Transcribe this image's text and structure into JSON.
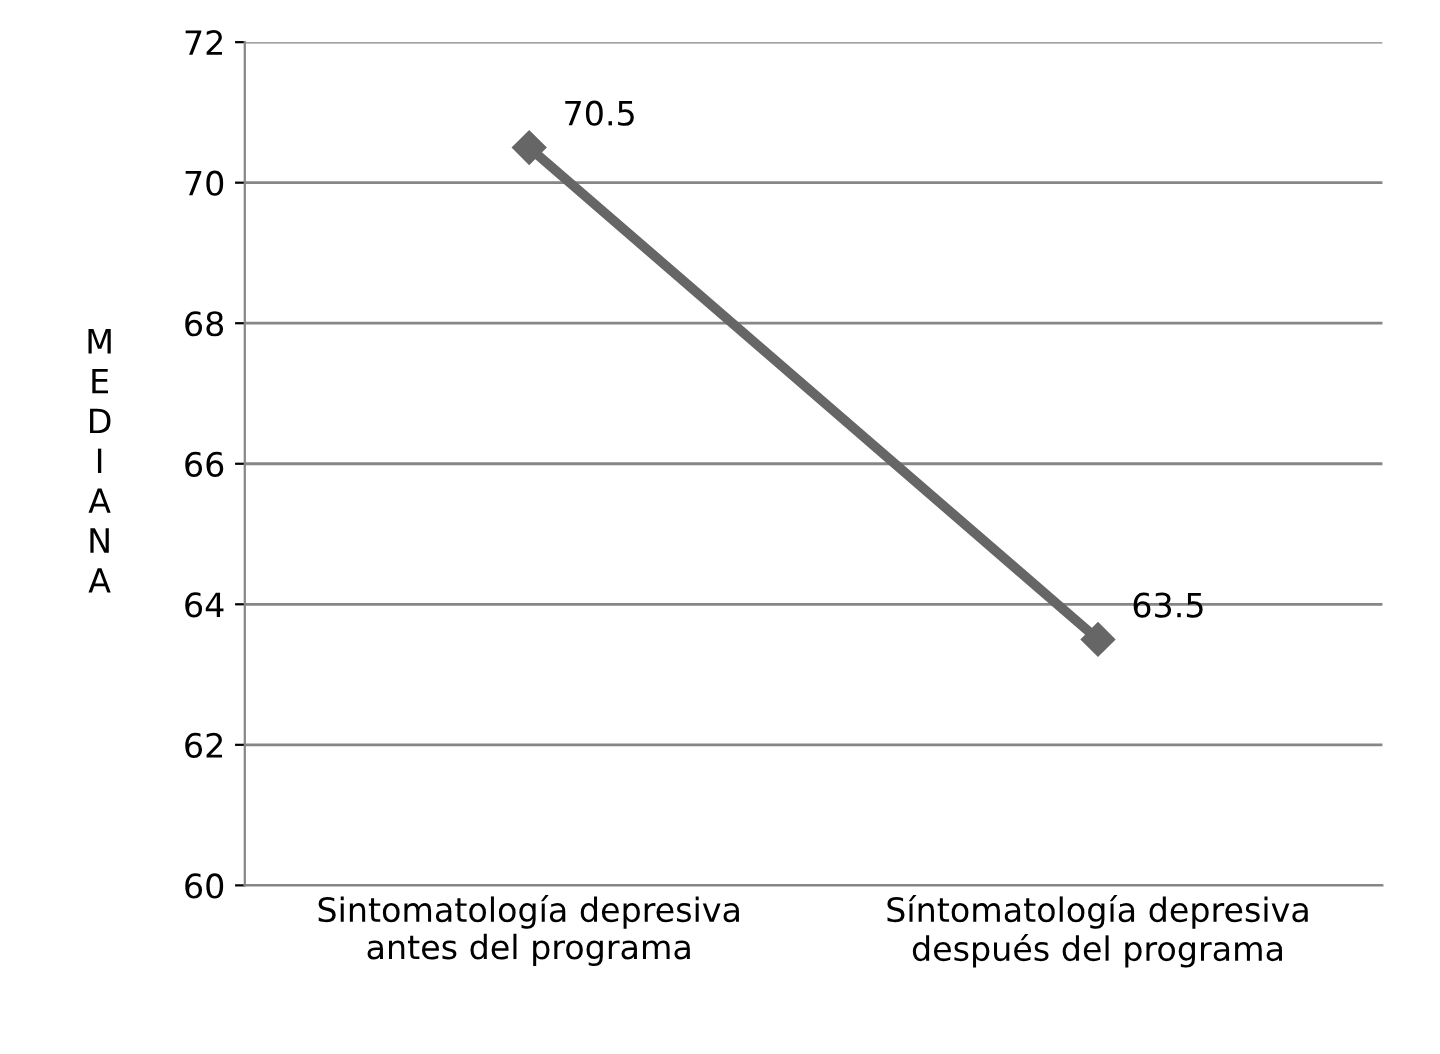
{
  "chart_data": {
    "type": "line",
    "ylabel": "MEDIANA",
    "categories": [
      "Sintomatología depresiva\nantes del programa",
      "Síntomatología depresiva\ndespués del programa"
    ],
    "series": [
      {
        "color": "#666666",
        "values": [
          70.5,
          63.5
        ]
      }
    ],
    "ylim": [
      60,
      72
    ],
    "yticks": [
      60,
      62,
      64,
      66,
      68,
      70,
      72
    ],
    "grid": "y",
    "marker": "diamond",
    "line_style": "solid",
    "data_labels": true,
    "legend": false
  }
}
